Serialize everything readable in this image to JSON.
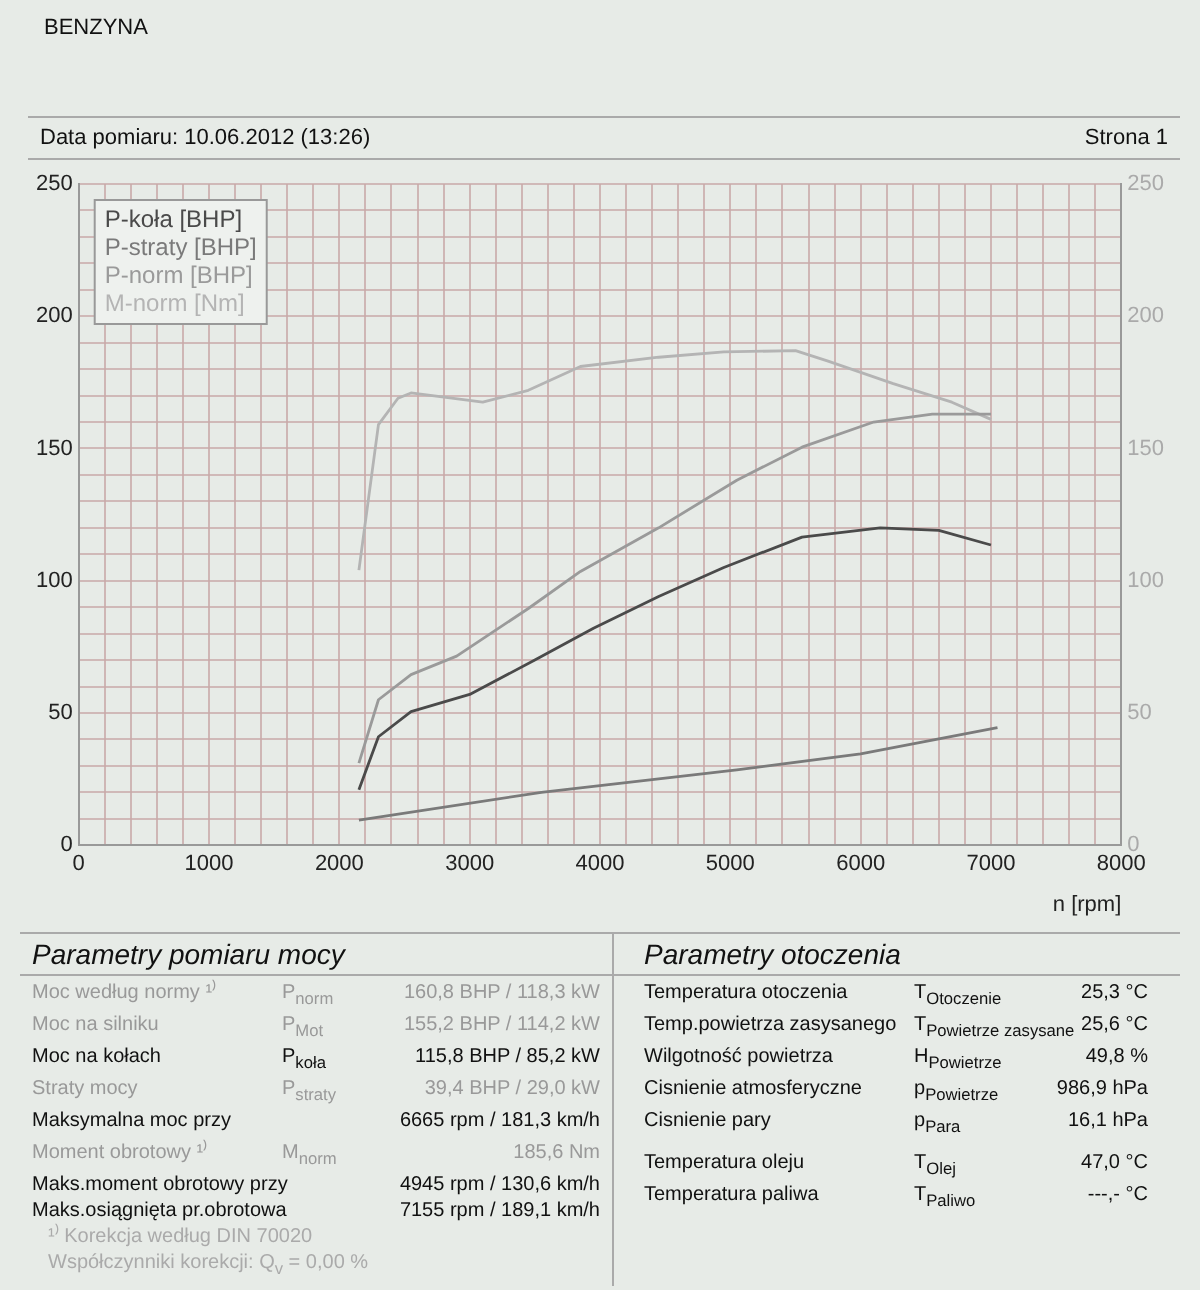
{
  "chart_data": {
    "type": "line",
    "xlabel": "n [rpm]",
    "xlim": [
      0,
      8000
    ],
    "xticks": [
      0,
      {
        "value": 200,
        "label": null
      },
      {
        "value": 400,
        "label": null
      },
      {
        "value": 600,
        "label": null
      },
      {
        "value": 800,
        "label": null
      },
      1000,
      {
        "value": 1200,
        "label": null
      },
      {
        "value": 1400,
        "label": null
      },
      {
        "value": 1600,
        "label": null
      },
      {
        "value": 1800,
        "label": null
      },
      2000,
      {
        "value": 2200,
        "label": null
      },
      {
        "value": 2400,
        "label": null
      },
      {
        "value": 2600,
        "label": null
      },
      {
        "value": 2800,
        "label": null
      },
      3000,
      {
        "value": 3200,
        "label": null
      },
      {
        "value": 3400,
        "label": null
      },
      {
        "value": 3600,
        "label": null
      },
      {
        "value": 3800,
        "label": null
      },
      4000,
      {
        "value": 4200,
        "label": null
      },
      {
        "value": 4400,
        "label": null
      },
      {
        "value": 4600,
        "label": null
      },
      {
        "value": 4800,
        "label": null
      },
      5000,
      {
        "value": 5200,
        "label": null
      },
      {
        "value": 5400,
        "label": null
      },
      {
        "value": 5600,
        "label": null
      },
      {
        "value": 5800,
        "label": null
      },
      6000,
      {
        "value": 6200,
        "label": null
      },
      {
        "value": 6400,
        "label": null
      },
      {
        "value": 6600,
        "label": null
      },
      {
        "value": 6800,
        "label": null
      },
      7000,
      {
        "value": 7200,
        "label": null
      },
      {
        "value": 7400,
        "label": null
      },
      {
        "value": 7600,
        "label": null
      },
      {
        "value": 7800,
        "label": null
      },
      8000
    ],
    "ylim": [
      0,
      250
    ],
    "yticks": [
      0,
      {
        "value": 10,
        "label": null
      },
      {
        "value": 20,
        "label": null
      },
      {
        "value": 30,
        "label": null
      },
      {
        "value": 40,
        "label": null
      },
      50,
      {
        "value": 60,
        "label": null
      },
      {
        "value": 70,
        "label": null
      },
      {
        "value": 80,
        "label": null
      },
      {
        "value": 90,
        "label": null
      },
      100,
      {
        "value": 110,
        "label": null
      },
      {
        "value": 120,
        "label": null
      },
      {
        "value": 130,
        "label": null
      },
      {
        "value": 140,
        "label": null
      },
      150,
      {
        "value": 160,
        "label": null
      },
      {
        "value": 170,
        "label": null
      },
      {
        "value": 180,
        "label": null
      },
      {
        "value": 190,
        "label": null
      },
      200,
      {
        "value": 210,
        "label": null
      },
      {
        "value": 220,
        "label": null
      },
      {
        "value": 230,
        "label": null
      },
      {
        "value": 240,
        "label": null
      },
      250
    ],
    "y2lim": [
      0,
      250
    ],
    "y2ticks": [
      0,
      50,
      100,
      150,
      200,
      250
    ],
    "grid": true,
    "legend": "top left",
    "marker": "none",
    "series": [
      {
        "name": "P-koła [BHP]",
        "color": "#4a4a4a",
        "x": [
          2150,
          2300,
          2550,
          3000,
          3500,
          3950,
          4450,
          4950,
          5550,
          6150,
          6600,
          7000
        ],
        "values": [
          21,
          41,
          50.5,
          57,
          70,
          82,
          94,
          105,
          116.5,
          120,
          119,
          113.5
        ]
      },
      {
        "name": "P-straty [BHP]",
        "color": "#7a7a7a",
        "x": [
          2150,
          3550,
          5050,
          6000,
          7050
        ],
        "values": [
          9.5,
          20,
          28.5,
          34.5,
          44.5
        ]
      },
      {
        "name": "P-norm [BHP]",
        "color": "#9a9a9a",
        "x": [
          2150,
          2300,
          2550,
          2900,
          3450,
          3850,
          4450,
          5050,
          5550,
          6100,
          6550,
          7000
        ],
        "values": [
          31,
          55,
          64.5,
          71.5,
          89.5,
          103.5,
          120,
          138,
          150.5,
          160,
          163,
          163
        ]
      },
      {
        "name": "M-norm [Nm]",
        "color": "#b4b4b4",
        "axis": "y2",
        "x": [
          2150,
          2300,
          2450,
          2550,
          3100,
          3450,
          3850,
          4450,
          4950,
          5500,
          5750,
          6250,
          6700,
          7000
        ],
        "values": [
          104,
          159,
          169,
          171,
          167.5,
          172,
          181,
          184.5,
          186.5,
          187,
          183,
          174.5,
          167.5,
          161
        ]
      }
    ],
    "annotations": [
      "BENZYNA",
      "Data pomiaru: 10.06.2012 (13:26)",
      "Strona 1",
      "Parametry pomiaru mocy",
      "Moc według normy ¹⁾",
      "P$_{norm}$",
      "160,8 BHP / 118,3 kW",
      "Moc na silniku",
      "P$_{Mot}$",
      "155,2 BHP / 114,2 kW",
      "Moc na kołach",
      "P$_{koła}$",
      "115,8 BHP / 85,2 kW",
      "Straty mocy",
      "P$_{straty}$",
      "39,4 BHP / 29,0 kW",
      "Maksymalna moc przy",
      "6665 rpm / 181,3 km/h",
      "Moment obrotowy ¹⁾",
      "M$_{norm}$",
      "185,6 Nm",
      "Maks.moment obrotowy przy",
      "4945 rpm / 130,6 km/h",
      "Maks.osiągnięta pr.obrotowa",
      "7155 rpm / 189,1 km/h",
      "¹⁾ Korekcja według DIN 70020",
      "Współczynniki korekcji: Q$_{v}$ = 0,00 %",
      "Parametry otoczenia",
      "Temperatura otoczenia",
      "T$_{Otoczenie}$",
      "25,3 °C",
      "Temp.powietrza zasysanego",
      "T$_{Powietrze zasysane}$",
      "25,6 °C",
      "Wilgotność powietrza",
      "H$_{Powietrze}$",
      "49,8 %",
      "Cisnienie atmosferyczne",
      "p$_{Powietrze}$",
      "986,9 hPa",
      "Cisnienie pary",
      "p$_{Para}$",
      "16,1 hPa",
      "Temperatura oleju",
      "T$_{Olej}$",
      "47,0 °C",
      "Temperatura paliwa",
      "T$_{Paliwo}$",
      "---,- °C"
    ]
  }
}
